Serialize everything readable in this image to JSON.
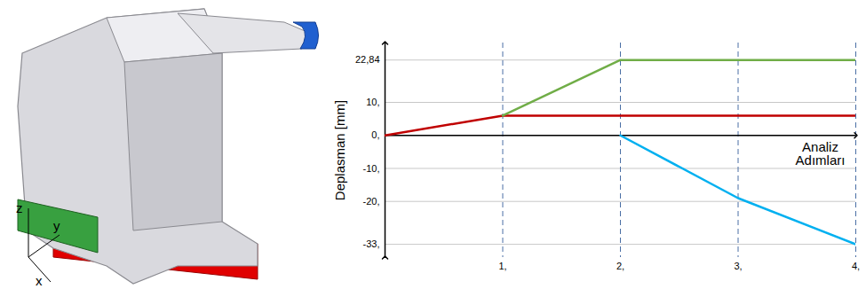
{
  "chart_data": {
    "type": "line",
    "y_label": "Deplasman [mm]",
    "x_label": "Analiz Adımları",
    "x": [
      0,
      1,
      2,
      3,
      4
    ],
    "series": [
      {
        "color": "#c00000",
        "values": [
          0,
          6,
          6,
          6,
          6
        ]
      },
      {
        "color": "#70ad47",
        "values": [
          null,
          6,
          22.84,
          22.84,
          22.84
        ]
      },
      {
        "color": "#00b0f0",
        "values": [
          null,
          null,
          0,
          -19,
          -33
        ]
      }
    ],
    "xlim": [
      0,
      4
    ],
    "xticks": [
      {
        "value": 1,
        "label": "1,"
      },
      {
        "value": 2,
        "label": "2,"
      },
      {
        "value": 3,
        "label": "3,"
      },
      {
        "value": 4,
        "label": "4,"
      }
    ],
    "ylim": [
      -37,
      28
    ],
    "yticks": [
      {
        "value": 22.84,
        "label": "22,84"
      },
      {
        "value": 10,
        "label": "10,"
      },
      {
        "value": 0,
        "label": "0,"
      },
      {
        "value": -10,
        "label": "-10,"
      },
      {
        "value": -20,
        "label": "-20,"
      },
      {
        "value": -33,
        "label": "-33,"
      }
    ],
    "grid": true
  },
  "figure": {
    "axis_labels": [
      "z",
      "y",
      "x"
    ]
  }
}
